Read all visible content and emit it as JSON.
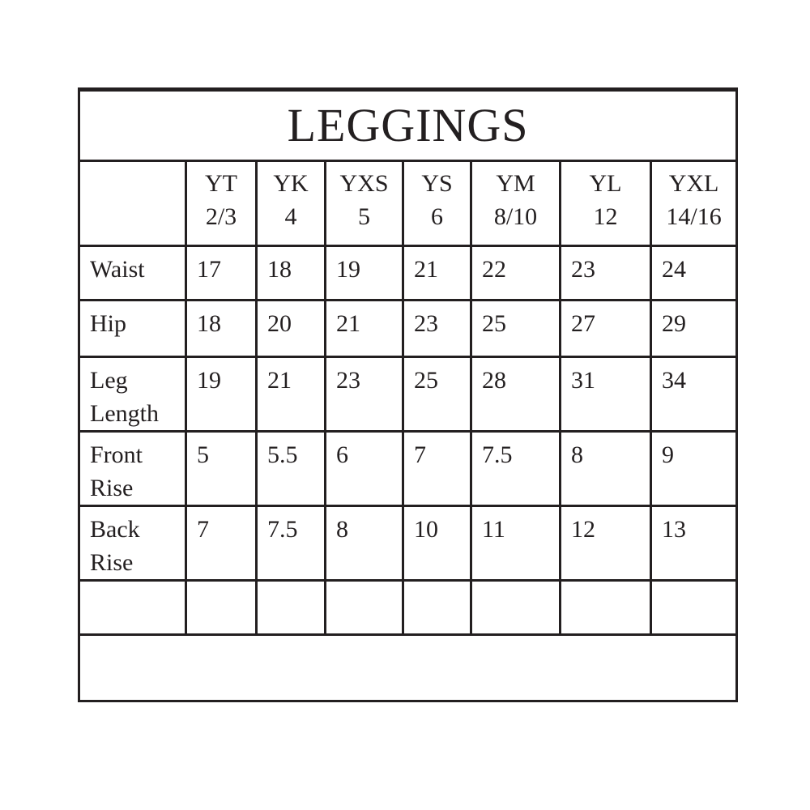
{
  "title": "LEGGINGS",
  "sizes": [
    {
      "code": "YT",
      "range": "2/3"
    },
    {
      "code": "YK",
      "range": "4"
    },
    {
      "code": "YXS",
      "range": "5"
    },
    {
      "code": "YS",
      "range": "6"
    },
    {
      "code": "YM",
      "range": "8/10"
    },
    {
      "code": "YL",
      "range": "12"
    },
    {
      "code": "YXL",
      "range": "14/16"
    }
  ],
  "rows": [
    {
      "label": [
        "Waist"
      ],
      "values": [
        "17",
        "18",
        "19",
        "21",
        "22",
        "23",
        "24"
      ]
    },
    {
      "label": [
        "Hip"
      ],
      "values": [
        "18",
        "20",
        "21",
        "23",
        "25",
        "27",
        "29"
      ]
    },
    {
      "label": [
        "Leg",
        "Length"
      ],
      "values": [
        "19",
        "21",
        "23",
        "25",
        "28",
        "31",
        "34"
      ]
    },
    {
      "label": [
        "Front",
        "Rise"
      ],
      "values": [
        "5",
        "5.5",
        "6",
        "7",
        "7.5",
        "8",
        "9"
      ]
    },
    {
      "label": [
        "Back",
        "Rise"
      ],
      "values": [
        "7",
        "7.5",
        "8",
        "10",
        "11",
        "12",
        "13"
      ]
    }
  ]
}
